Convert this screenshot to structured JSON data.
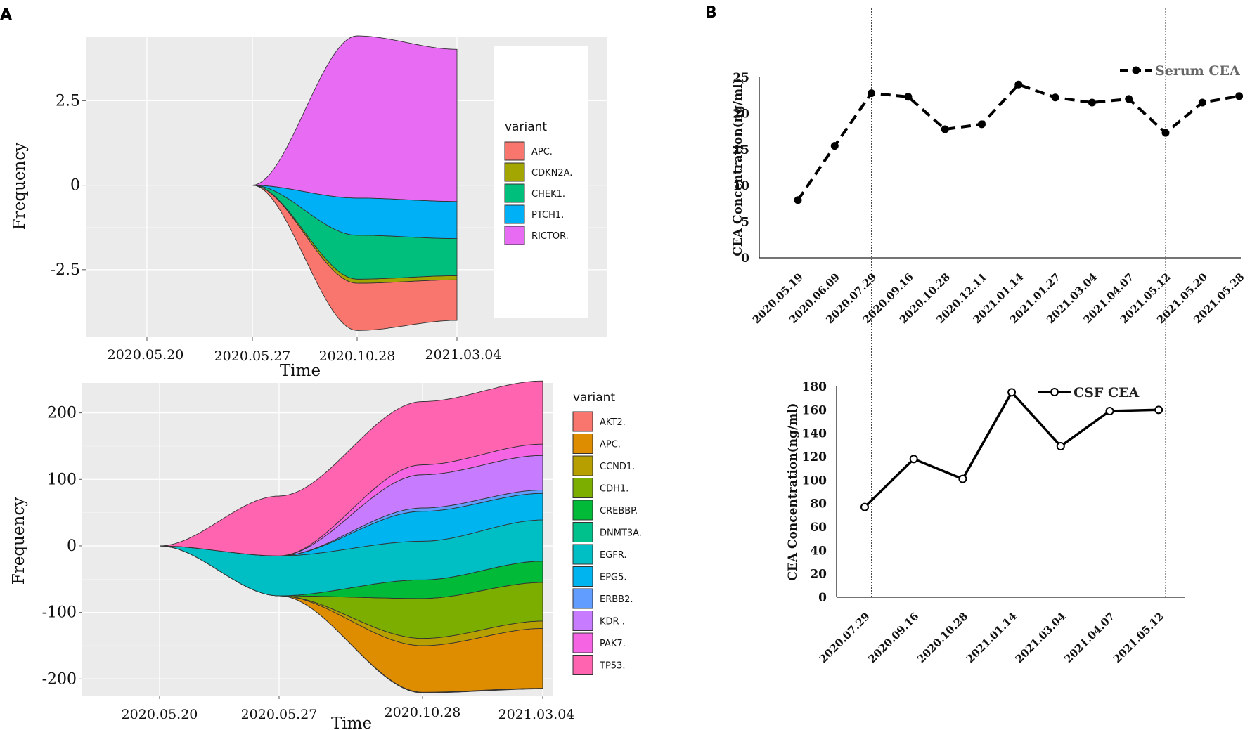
{
  "panels": {
    "a_label": "A",
    "b_label": "B"
  },
  "chart_data": [
    {
      "id": "a_top",
      "type": "area",
      "subtype": "streamgraph",
      "xlabel": "Time",
      "ylabel": "Frequency",
      "x_ticks": [
        "2020.05.20",
        "2020.05.27",
        "2020.10.28",
        "2021.03.04"
      ],
      "y_ticks": [
        2.5,
        0,
        -2.5
      ],
      "y_tick_labels": [
        "2.5",
        "0",
        "-2.5"
      ],
      "ylim": [
        -4.5,
        4.4
      ],
      "legend_title": "variant",
      "legend_position": "right",
      "series": [
        {
          "name": "APC.",
          "color": "#F8766D",
          "values": [
            0,
            0,
            1.4,
            1.2
          ]
        },
        {
          "name": "CDKN2A.",
          "color": "#A3A500",
          "values": [
            0,
            0,
            0.12,
            0.12
          ]
        },
        {
          "name": "CHEK1.",
          "color": "#00BF7D",
          "values": [
            0,
            0,
            1.3,
            1.1
          ]
        },
        {
          "name": "PTCH1.",
          "color": "#00B0F6",
          "values": [
            0,
            0,
            1.1,
            1.1
          ]
        },
        {
          "name": "RICTOR.",
          "color": "#E76BF3",
          "values": [
            0,
            0,
            4.8,
            4.5
          ]
        }
      ]
    },
    {
      "id": "a_bottom",
      "type": "area",
      "subtype": "streamgraph",
      "xlabel": "Time",
      "ylabel": "Frequency",
      "x_ticks": [
        "2020.05.20",
        "2020.05.27",
        "2020.10.28",
        "2021.03.04"
      ],
      "y_ticks": [
        200,
        100,
        0,
        -100,
        -200
      ],
      "y_tick_labels": [
        "200",
        "100",
        "0",
        "-100",
        "-200"
      ],
      "ylim": [
        -225,
        245
      ],
      "legend_title": "variant",
      "legend_position": "right",
      "series": [
        {
          "name": "AKT2.",
          "color": "#F8766D",
          "values": [
            0,
            0,
            1,
            1
          ]
        },
        {
          "name": "APC.",
          "color": "#DE8C00",
          "values": [
            0,
            0,
            70,
            90
          ]
        },
        {
          "name": "CCND1.",
          "color": "#B79F00",
          "values": [
            0,
            0,
            11,
            11
          ]
        },
        {
          "name": "CDH1.",
          "color": "#7CAE00",
          "values": [
            0,
            0,
            60,
            58
          ]
        },
        {
          "name": "CREBBP.",
          "color": "#00BA38",
          "values": [
            0,
            0,
            28,
            32
          ]
        },
        {
          "name": "DNMT3A.",
          "color": "#00C08B",
          "values": [
            0,
            0,
            0,
            0
          ]
        },
        {
          "name": "EGFR.",
          "color": "#00BFC4",
          "values": [
            0,
            60,
            58,
            62
          ]
        },
        {
          "name": "EPG5.",
          "color": "#00B4F0",
          "values": [
            0,
            0,
            45,
            40
          ]
        },
        {
          "name": "ERBB2.",
          "color": "#619CFF",
          "values": [
            0,
            0,
            5,
            5
          ]
        },
        {
          "name": "KDR .",
          "color": "#C77CFF",
          "values": [
            0,
            0,
            50,
            52
          ]
        },
        {
          "name": "PAK7.",
          "color": "#F564E3",
          "values": [
            0,
            0,
            15,
            17
          ]
        },
        {
          "name": "TP53.",
          "color": "#FF64B0",
          "values": [
            0,
            90,
            95,
            95
          ]
        }
      ]
    },
    {
      "id": "b_top",
      "type": "line",
      "title": "",
      "xlabel": "",
      "ylabel": "CEA Concentration(ng/ml)",
      "ylim": [
        0,
        25
      ],
      "y_ticks": [
        0,
        5,
        10,
        15,
        20,
        25
      ],
      "y_tick_labels": [
        "0",
        "5",
        "10",
        "15",
        "20",
        "25"
      ],
      "categories": [
        "2020.05.19",
        "2020.06.09",
        "2020.07.29",
        "2020.09.16",
        "2020.10.28",
        "2020.12.11",
        "2021.01.14",
        "2021.01.27",
        "2021.03.04",
        "2021.04.07",
        "2021.05.12",
        "2021.05.20",
        "2021.05.28"
      ],
      "series": [
        {
          "name": "Serum CEA",
          "style": "dashed",
          "marker": "filled-circle",
          "values": [
            8,
            15.5,
            22.8,
            22.3,
            17.8,
            18.5,
            24,
            22.2,
            21.5,
            22,
            17.3,
            21.5,
            22.4
          ]
        }
      ],
      "legend_position": "top-right"
    },
    {
      "id": "b_bottom",
      "type": "line",
      "title": "",
      "xlabel": "",
      "ylabel": "CEA Concentration(ng/ml)",
      "ylim": [
        0,
        180
      ],
      "y_ticks": [
        0,
        20,
        40,
        60,
        80,
        100,
        120,
        140,
        160,
        180
      ],
      "y_tick_labels": [
        "0",
        "20",
        "40",
        "60",
        "80",
        "100",
        "120",
        "140",
        "160",
        "180"
      ],
      "categories": [
        "2020.07.29",
        "2020.09.16",
        "2020.10.28",
        "2021.01.14",
        "2021.03.04",
        "2021.04.07",
        "2021.05.12"
      ],
      "series": [
        {
          "name": "CSF CEA",
          "style": "solid",
          "marker": "open-circle",
          "values": [
            77,
            118,
            101,
            175,
            129,
            159,
            160
          ]
        }
      ],
      "legend_position": "top-right"
    }
  ]
}
